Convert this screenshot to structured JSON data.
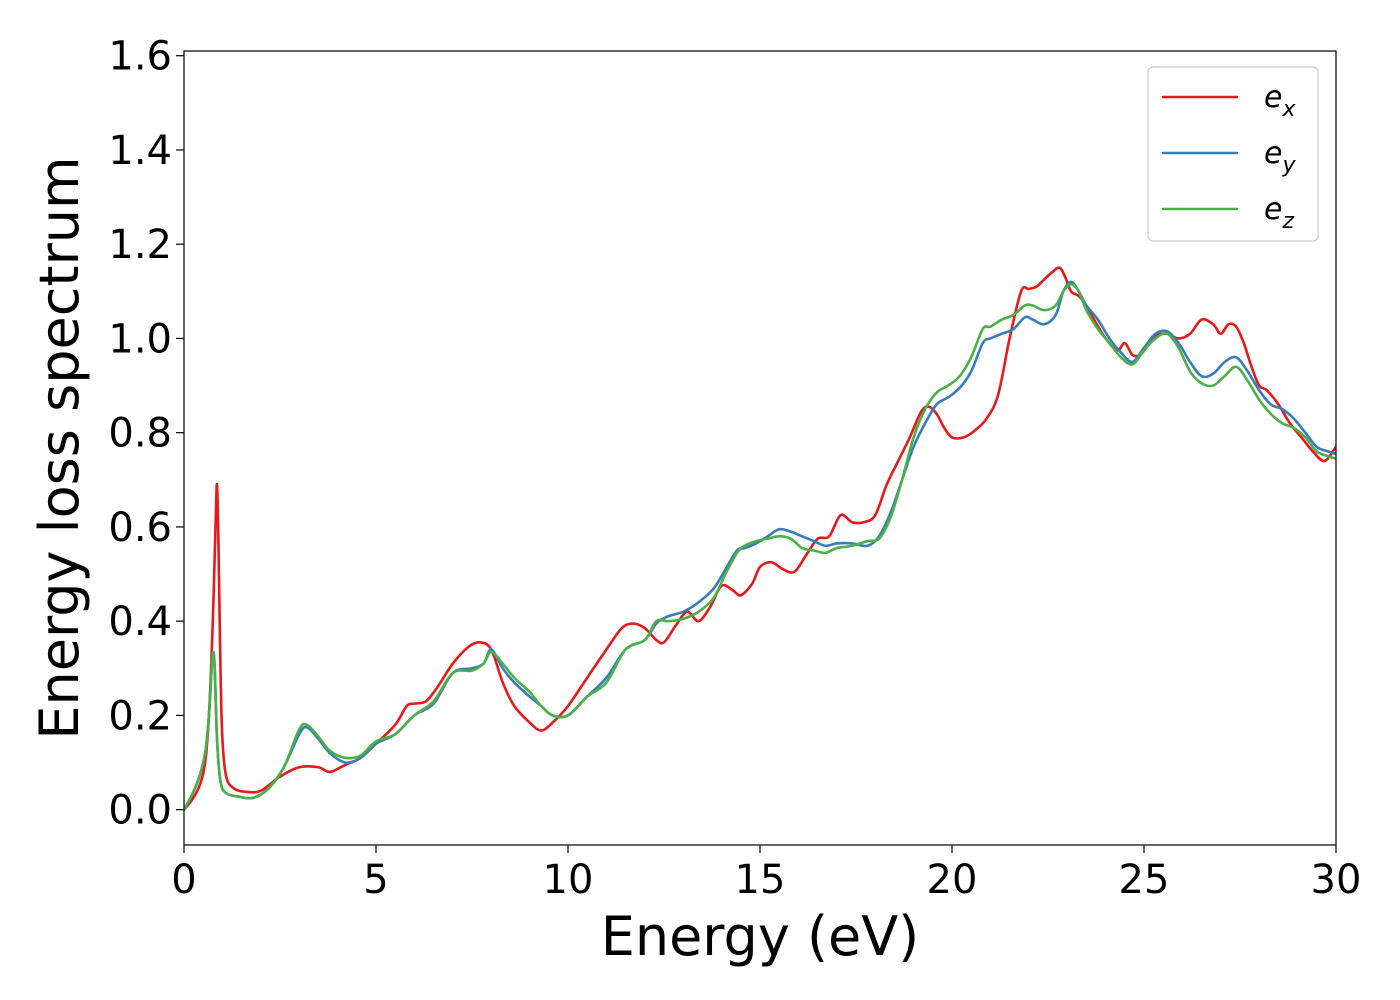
{
  "chart_data": {
    "type": "line",
    "title": "",
    "xlabel": "Energy (eV)",
    "ylabel": "Energy loss spectrum",
    "xlim": [
      0,
      30
    ],
    "ylim": [
      -0.075,
      1.61
    ],
    "xticks": [
      0,
      5,
      10,
      15,
      20,
      25,
      30
    ],
    "yticks": [
      0.0,
      0.2,
      0.4,
      0.6,
      0.8,
      1.0,
      1.2,
      1.4,
      1.6
    ],
    "xtick_labels": [
      "0",
      "5",
      "10",
      "15",
      "20",
      "25",
      "30"
    ],
    "ytick_labels": [
      "0.0",
      "0.2",
      "0.4",
      "0.6",
      "0.8",
      "1.0",
      "1.2",
      "1.4",
      "1.6"
    ],
    "grid": false,
    "legend_position": "top-right",
    "series": [
      {
        "name": "e_x",
        "label_base": "e",
        "label_sub": "x",
        "color": "#e41a1c",
        "x": [
          0,
          0.2,
          0.4,
          0.55,
          0.65,
          0.75,
          0.82,
          0.86,
          0.9,
          0.95,
          1.0,
          1.1,
          1.3,
          1.6,
          2.0,
          2.5,
          3.0,
          3.5,
          3.8,
          4.2,
          4.6,
          5.0,
          5.5,
          5.8,
          6.0,
          6.3,
          6.6,
          7.0,
          7.4,
          7.7,
          8.0,
          8.3,
          8.6,
          9.0,
          9.3,
          9.6,
          10.0,
          10.5,
          11.0,
          11.4,
          11.7,
          12.0,
          12.3,
          12.5,
          12.8,
          13.1,
          13.4,
          13.7,
          14.0,
          14.3,
          14.5,
          14.8,
          15.0,
          15.3,
          15.6,
          15.9,
          16.2,
          16.5,
          16.8,
          17.1,
          17.4,
          17.7,
          18.0,
          18.3,
          18.6,
          18.9,
          19.2,
          19.4,
          19.6,
          19.8,
          20.0,
          20.3,
          20.6,
          20.9,
          21.2,
          21.5,
          21.8,
          22.0,
          22.2,
          22.4,
          22.6,
          22.8,
          22.95,
          23.1,
          23.3,
          23.5,
          23.7,
          24.0,
          24.3,
          24.5,
          24.7,
          24.9,
          25.1,
          25.3,
          25.6,
          25.9,
          26.2,
          26.5,
          26.8,
          27.0,
          27.2,
          27.4,
          27.6,
          27.8,
          28.0,
          28.2,
          28.5,
          28.8,
          29.1,
          29.4,
          29.7,
          30.0
        ],
        "y": [
          0.0,
          0.02,
          0.05,
          0.1,
          0.2,
          0.4,
          0.6,
          0.69,
          0.55,
          0.3,
          0.15,
          0.07,
          0.045,
          0.038,
          0.04,
          0.07,
          0.09,
          0.09,
          0.08,
          0.095,
          0.11,
          0.14,
          0.18,
          0.22,
          0.225,
          0.23,
          0.26,
          0.31,
          0.345,
          0.355,
          0.34,
          0.27,
          0.22,
          0.185,
          0.168,
          0.185,
          0.22,
          0.28,
          0.34,
          0.385,
          0.395,
          0.385,
          0.36,
          0.355,
          0.39,
          0.42,
          0.4,
          0.43,
          0.475,
          0.465,
          0.455,
          0.48,
          0.515,
          0.525,
          0.51,
          0.505,
          0.54,
          0.575,
          0.58,
          0.625,
          0.61,
          0.61,
          0.625,
          0.69,
          0.74,
          0.79,
          0.845,
          0.855,
          0.84,
          0.81,
          0.79,
          0.79,
          0.805,
          0.83,
          0.88,
          1.0,
          1.1,
          1.105,
          1.11,
          1.125,
          1.14,
          1.15,
          1.13,
          1.1,
          1.09,
          1.07,
          1.04,
          1.0,
          0.975,
          0.99,
          0.965,
          0.965,
          0.985,
          1.005,
          1.01,
          1.0,
          1.01,
          1.04,
          1.03,
          1.01,
          1.03,
          1.025,
          0.99,
          0.94,
          0.9,
          0.89,
          0.86,
          0.82,
          0.79,
          0.76,
          0.74,
          0.77
        ]
      },
      {
        "name": "e_y",
        "label_base": "e",
        "label_sub": "y",
        "color": "#377eb8",
        "x": [
          0,
          0.2,
          0.4,
          0.55,
          0.65,
          0.72,
          0.76,
          0.8,
          0.86,
          0.95,
          1.1,
          1.4,
          1.8,
          2.2,
          2.6,
          3.0,
          3.2,
          3.5,
          3.8,
          4.2,
          4.6,
          5.0,
          5.5,
          6.0,
          6.5,
          7.0,
          7.5,
          7.8,
          8.0,
          8.3,
          8.6,
          9.0,
          9.3,
          9.6,
          10.0,
          10.5,
          11.0,
          11.5,
          12.0,
          12.3,
          12.6,
          13.0,
          13.4,
          13.8,
          14.1,
          14.4,
          14.6,
          14.9,
          15.2,
          15.5,
          15.8,
          16.1,
          16.4,
          16.7,
          17.0,
          17.4,
          17.8,
          18.1,
          18.4,
          18.7,
          19.0,
          19.3,
          19.6,
          19.9,
          20.2,
          20.5,
          20.8,
          21.0,
          21.3,
          21.6,
          21.9,
          22.1,
          22.4,
          22.7,
          22.9,
          23.1,
          23.3,
          23.5,
          23.8,
          24.1,
          24.4,
          24.7,
          25.0,
          25.3,
          25.6,
          25.9,
          26.2,
          26.5,
          26.8,
          27.1,
          27.4,
          27.7,
          28.0,
          28.3,
          28.6,
          28.9,
          29.2,
          29.5,
          29.8,
          30.0
        ],
        "y": [
          0.0,
          0.03,
          0.07,
          0.12,
          0.2,
          0.3,
          0.335,
          0.3,
          0.15,
          0.06,
          0.035,
          0.028,
          0.025,
          0.045,
          0.09,
          0.16,
          0.175,
          0.15,
          0.12,
          0.1,
          0.11,
          0.14,
          0.16,
          0.2,
          0.225,
          0.29,
          0.3,
          0.31,
          0.34,
          0.3,
          0.27,
          0.24,
          0.22,
          0.2,
          0.2,
          0.24,
          0.28,
          0.34,
          0.36,
          0.395,
          0.41,
          0.42,
          0.44,
          0.47,
          0.51,
          0.55,
          0.555,
          0.565,
          0.58,
          0.595,
          0.59,
          0.58,
          0.57,
          0.56,
          0.565,
          0.565,
          0.56,
          0.58,
          0.63,
          0.7,
          0.77,
          0.82,
          0.86,
          0.875,
          0.895,
          0.93,
          0.99,
          1.0,
          1.01,
          1.02,
          1.045,
          1.04,
          1.03,
          1.05,
          1.1,
          1.12,
          1.1,
          1.07,
          1.04,
          1.0,
          0.97,
          0.95,
          0.98,
          1.01,
          1.015,
          0.99,
          0.95,
          0.92,
          0.925,
          0.95,
          0.96,
          0.93,
          0.89,
          0.86,
          0.85,
          0.83,
          0.8,
          0.77,
          0.76,
          0.755
        ]
      },
      {
        "name": "e_z",
        "label_base": "e",
        "label_sub": "z",
        "color": "#4daf4a",
        "x": [
          0,
          0.2,
          0.4,
          0.55,
          0.65,
          0.72,
          0.76,
          0.8,
          0.86,
          0.95,
          1.1,
          1.4,
          1.8,
          2.2,
          2.6,
          3.0,
          3.2,
          3.5,
          3.8,
          4.2,
          4.6,
          5.0,
          5.5,
          6.0,
          6.5,
          7.0,
          7.5,
          7.8,
          8.0,
          8.3,
          8.6,
          9.0,
          9.3,
          9.6,
          10.0,
          10.5,
          11.0,
          11.5,
          12.0,
          12.3,
          12.6,
          13.0,
          13.4,
          13.8,
          14.1,
          14.4,
          14.6,
          14.9,
          15.2,
          15.5,
          15.8,
          16.1,
          16.4,
          16.7,
          17.0,
          17.4,
          17.8,
          18.1,
          18.4,
          18.7,
          19.0,
          19.3,
          19.6,
          19.9,
          20.2,
          20.5,
          20.8,
          21.0,
          21.3,
          21.6,
          21.9,
          22.1,
          22.4,
          22.7,
          22.9,
          23.1,
          23.3,
          23.5,
          23.8,
          24.1,
          24.4,
          24.7,
          25.0,
          25.3,
          25.6,
          25.9,
          26.2,
          26.5,
          26.8,
          27.1,
          27.4,
          27.7,
          28.0,
          28.3,
          28.6,
          28.9,
          29.2,
          29.5,
          29.8,
          30.0
        ],
        "y": [
          0.0,
          0.03,
          0.07,
          0.12,
          0.2,
          0.3,
          0.335,
          0.3,
          0.15,
          0.06,
          0.035,
          0.028,
          0.025,
          0.045,
          0.09,
          0.17,
          0.18,
          0.155,
          0.125,
          0.11,
          0.115,
          0.145,
          0.16,
          0.2,
          0.23,
          0.29,
          0.295,
          0.31,
          0.335,
          0.31,
          0.28,
          0.25,
          0.22,
          0.2,
          0.2,
          0.24,
          0.27,
          0.34,
          0.36,
          0.4,
          0.4,
          0.405,
          0.42,
          0.45,
          0.5,
          0.545,
          0.56,
          0.57,
          0.575,
          0.58,
          0.575,
          0.555,
          0.55,
          0.545,
          0.555,
          0.56,
          0.57,
          0.575,
          0.62,
          0.7,
          0.79,
          0.85,
          0.885,
          0.9,
          0.92,
          0.96,
          1.02,
          1.025,
          1.04,
          1.05,
          1.07,
          1.07,
          1.06,
          1.07,
          1.1,
          1.115,
          1.1,
          1.06,
          1.02,
          0.99,
          0.96,
          0.945,
          0.975,
          1.0,
          1.01,
          0.98,
          0.93,
          0.905,
          0.9,
          0.92,
          0.94,
          0.91,
          0.87,
          0.84,
          0.82,
          0.81,
          0.79,
          0.76,
          0.75,
          0.745
        ]
      }
    ]
  }
}
